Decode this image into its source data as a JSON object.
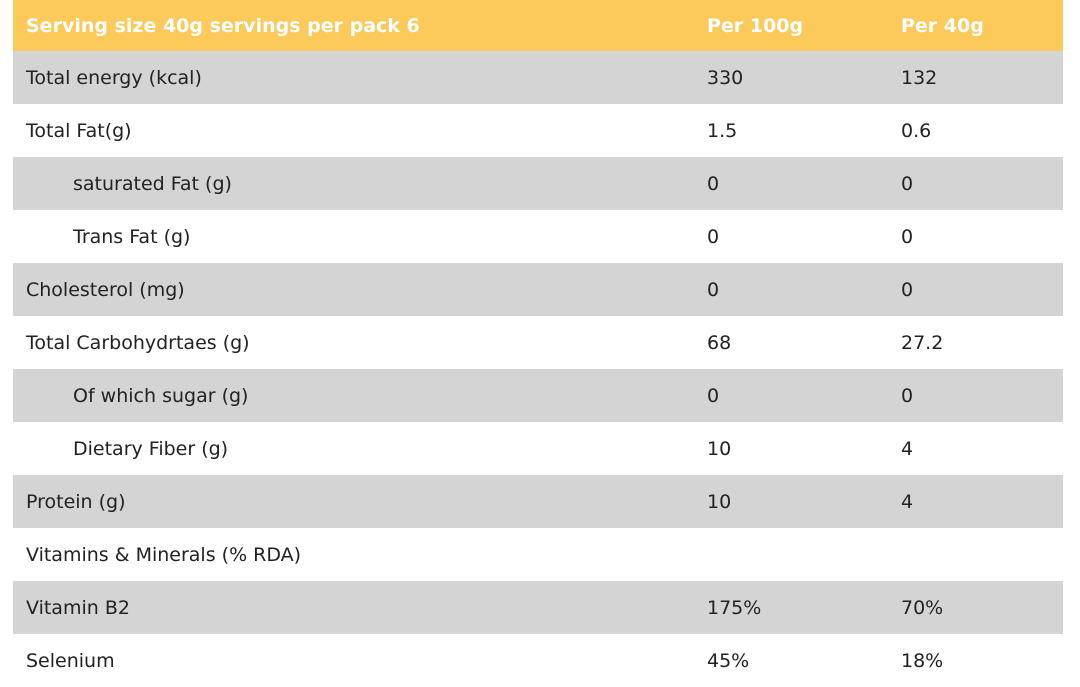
{
  "colors": {
    "header_bg": "#fcc95b",
    "header_text": "#ffffff",
    "row_gray": "#d4d4d4",
    "row_white": "#ffffff"
  },
  "header": {
    "label": "Serving size 40g servings per pack 6",
    "col_per100": "Per 100g",
    "col_per40": "Per 40g"
  },
  "rows": [
    {
      "label": "Total energy (kcal)",
      "per100": "330",
      "per40": "132"
    },
    {
      "label": "Total Fat(g)",
      "per100": "1.5",
      "per40": "0.6"
    },
    {
      "label": "saturated Fat (g)",
      "per100": "0",
      "per40": "0"
    },
    {
      "label": "Trans Fat (g)",
      "per100": "0",
      "per40": "0"
    },
    {
      "label": "Cholesterol (mg)",
      "per100": "0",
      "per40": "0"
    },
    {
      "label": "Total Carbohydrtaes (g)",
      "per100": "68",
      "per40": "27.2"
    },
    {
      "label": "Of which sugar (g)",
      "per100": "0",
      "per40": "0"
    },
    {
      "label": "Dietary Fiber (g)",
      "per100": "10",
      "per40": "4"
    },
    {
      "label": "Protein (g)",
      "per100": "10",
      "per40": "4"
    },
    {
      "label": "Vitamins & Minerals (% RDA)",
      "per100": "",
      "per40": ""
    },
    {
      "label": "Vitamin B2",
      "per100": "175%",
      "per40": "70%"
    },
    {
      "label": "Selenium",
      "per100": "45%",
      "per40": "18%"
    }
  ]
}
